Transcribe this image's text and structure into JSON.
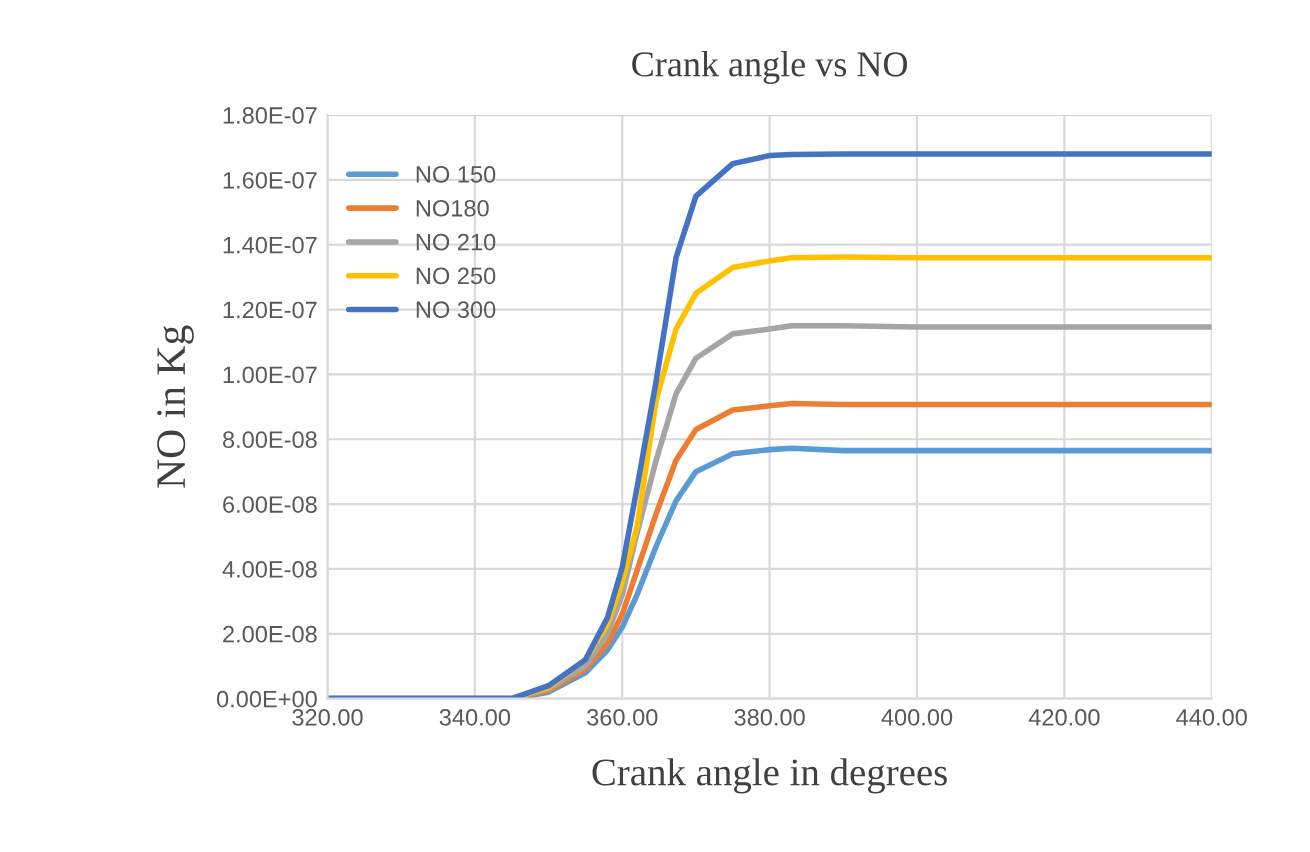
{
  "chart_data": {
    "type": "line",
    "title": "Crank angle vs NO",
    "xlabel": "Crank angle in degrees",
    "ylabel": "NO in Kg",
    "xlim": [
      320,
      440
    ],
    "xticks": [
      {
        "value": 320,
        "label": "320.00"
      },
      {
        "value": 340,
        "label": "340.00"
      },
      {
        "value": 360,
        "label": "360.00"
      },
      {
        "value": 380,
        "label": "380.00"
      },
      {
        "value": 400,
        "label": "400.00"
      },
      {
        "value": 420,
        "label": "420.00"
      },
      {
        "value": 440,
        "label": "440.00"
      }
    ],
    "ylim": [
      0,
      1.8e-07
    ],
    "yticks": [
      {
        "value": 0,
        "label": "0.00E+00"
      },
      {
        "value": 2e-08,
        "label": "2.00E-08"
      },
      {
        "value": 4e-08,
        "label": "4.00E-08"
      },
      {
        "value": 6e-08,
        "label": "6.00E-08"
      },
      {
        "value": 8e-08,
        "label": "8.00E-08"
      },
      {
        "value": 1e-07,
        "label": "1.00E-07"
      },
      {
        "value": 1.2e-07,
        "label": "1.20E-07"
      },
      {
        "value": 1.4e-07,
        "label": "1.40E-07"
      },
      {
        "value": 1.6e-07,
        "label": "1.60E-07"
      },
      {
        "value": 1.8e-07,
        "label": "1.80E-07"
      }
    ],
    "grid": true,
    "legend": "top left",
    "marker": "none",
    "line_style": "solid",
    "x": [
      320,
      340,
      345,
      350,
      355,
      358,
      360,
      362,
      364.6,
      367.3,
      370,
      375,
      380,
      383,
      390,
      400,
      420,
      440
    ],
    "series": [
      {
        "name": "NO 150",
        "color": "#5b9bd5",
        "values": [
          0,
          0,
          0,
          2e-09,
          8e-09,
          1.5e-08,
          2.2e-08,
          3.2e-08,
          4.7e-08,
          6.1e-08,
          7e-08,
          7.55e-08,
          7.68e-08,
          7.72e-08,
          7.65e-08,
          7.65e-08,
          7.65e-08,
          7.65e-08
        ]
      },
      {
        "name": "NO180",
        "color": "#ed7d31",
        "values": [
          0,
          0,
          0,
          2.5e-09,
          9e-09,
          1.7e-08,
          2.6e-08,
          3.95e-08,
          5.7e-08,
          7.35e-08,
          8.3e-08,
          8.9e-08,
          9.03e-08,
          9.1e-08,
          9.07e-08,
          9.07e-08,
          9.07e-08,
          9.07e-08
        ]
      },
      {
        "name": "NO 210",
        "color": "#a5a5a5",
        "values": [
          0,
          0,
          0,
          3e-09,
          1e-08,
          2e-08,
          3.2e-08,
          5.1e-08,
          7.35e-08,
          9.4e-08,
          1.05e-07,
          1.125e-07,
          1.14e-07,
          1.15e-07,
          1.15e-07,
          1.146e-07,
          1.146e-07,
          1.146e-07
        ]
      },
      {
        "name": "NO 250",
        "color": "#ffc000",
        "values": [
          0,
          0,
          0,
          3.5e-09,
          1.2e-08,
          2.3e-08,
          3.6e-08,
          5.3e-08,
          9.2e-08,
          1.14e-07,
          1.25e-07,
          1.33e-07,
          1.35e-07,
          1.36e-07,
          1.362e-07,
          1.36e-07,
          1.36e-07,
          1.36e-07
        ]
      },
      {
        "name": "NO 300",
        "color": "#4472c4",
        "values": [
          0,
          0,
          0,
          4e-09,
          1.2e-08,
          2.5e-08,
          4.05e-08,
          6.5e-08,
          9.8e-08,
          1.36e-07,
          1.55e-07,
          1.65e-07,
          1.675e-07,
          1.678e-07,
          1.68e-07,
          1.68e-07,
          1.68e-07,
          1.68e-07
        ]
      }
    ]
  }
}
